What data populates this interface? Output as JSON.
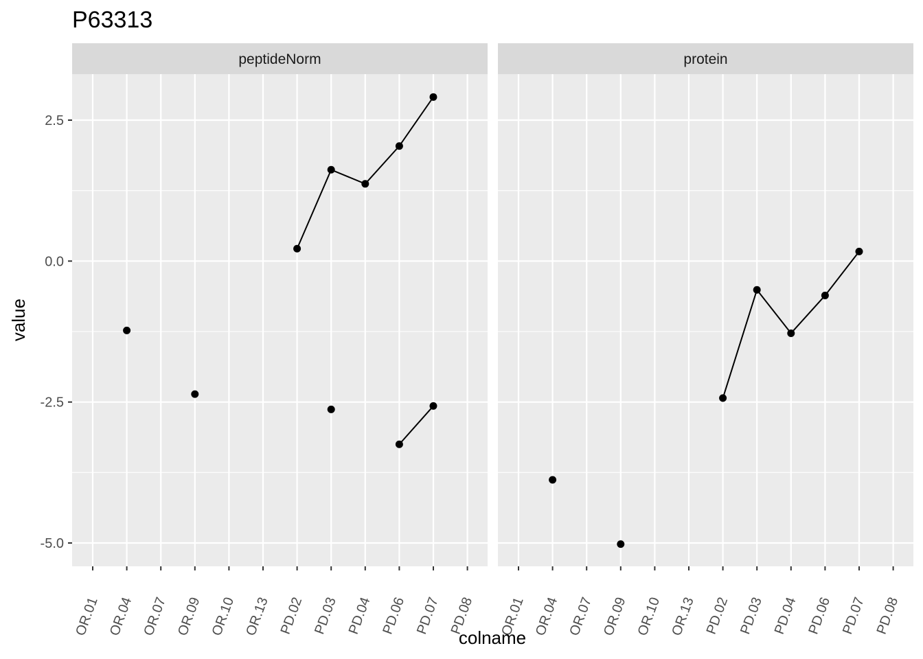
{
  "chart_data": {
    "type": "line",
    "title": "P63313",
    "xlabel": "colname",
    "ylabel": "value",
    "categories": [
      "OR.01",
      "OR.04",
      "OR.07",
      "OR.09",
      "OR.10",
      "OR.13",
      "PD.02",
      "PD.03",
      "PD.04",
      "PD.06",
      "PD.07",
      "PD.08"
    ],
    "y_ticks": [
      2.5,
      0.0,
      -2.5,
      -5.0
    ],
    "y_tick_labels": [
      "2.5",
      "0.0",
      "-2.5",
      "-5.0"
    ],
    "ylim": [
      -5.4,
      3.35
    ],
    "grid": true,
    "panels": [
      {
        "label": "peptideNorm",
        "series": [
          {
            "points": [
              [
                "OR.04",
                -1.23
              ]
            ]
          },
          {
            "points": [
              [
                "OR.09",
                -2.36
              ]
            ]
          },
          {
            "points": [
              [
                "PD.02",
                0.22
              ],
              [
                "PD.03",
                1.62
              ],
              [
                "PD.04",
                1.37
              ],
              [
                "PD.06",
                2.04
              ],
              [
                "PD.07",
                2.91
              ]
            ]
          },
          {
            "points": [
              [
                "PD.03",
                -2.63
              ]
            ]
          },
          {
            "points": [
              [
                "PD.06",
                -3.25
              ],
              [
                "PD.07",
                -2.57
              ]
            ]
          }
        ]
      },
      {
        "label": "protein",
        "series": [
          {
            "points": [
              [
                "OR.04",
                -3.88
              ]
            ]
          },
          {
            "points": [
              [
                "OR.09",
                -5.02
              ]
            ]
          },
          {
            "points": [
              [
                "PD.02",
                -2.43
              ],
              [
                "PD.03",
                -0.51
              ],
              [
                "PD.04",
                -1.28
              ],
              [
                "PD.06",
                -0.61
              ],
              [
                "PD.07",
                0.17
              ]
            ]
          }
        ]
      }
    ]
  }
}
